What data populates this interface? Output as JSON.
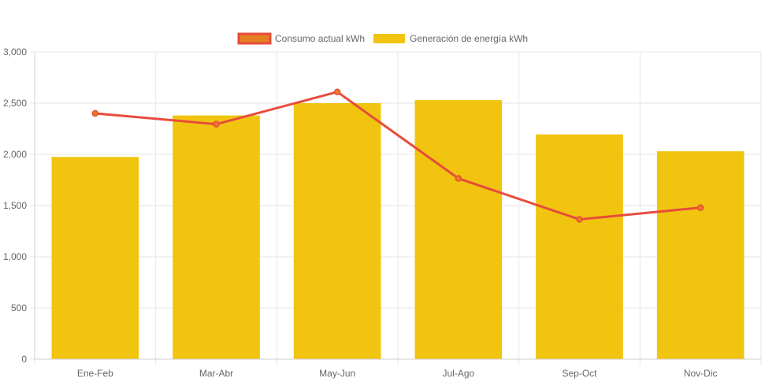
{
  "chart_data": {
    "type": "bar",
    "categories": [
      "Ene-Feb",
      "Mar-Abr",
      "May-Jun",
      "Jul-Ago",
      "Sep-Oct",
      "Nov-Dic"
    ],
    "series": [
      {
        "name": "Consumo actual kWh",
        "kind": "line",
        "values": [
          2400,
          2295,
          2610,
          1765,
          1365,
          1480
        ],
        "color": "#e74c3c",
        "fill": "#e67e22"
      },
      {
        "name": "Generación de energía kWh",
        "kind": "bar",
        "values": [
          1975,
          2380,
          2500,
          2530,
          2195,
          2030
        ],
        "color": "#f1c40f"
      }
    ],
    "yticks": [
      "0",
      "500",
      "1,000",
      "1,500",
      "2,000",
      "2,500",
      "3,000"
    ],
    "ylim": [
      0,
      3000
    ],
    "grid": true,
    "legend_position": "top"
  }
}
